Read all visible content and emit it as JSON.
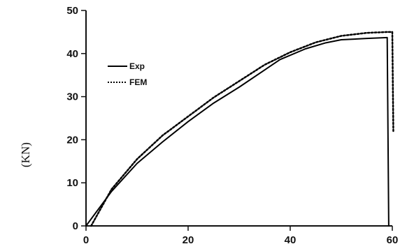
{
  "chart_data": {
    "type": "line",
    "title": "",
    "xlabel": "",
    "ylabel": "(KN)",
    "xlim": [
      0,
      60
    ],
    "ylim": [
      0,
      50
    ],
    "x_ticks": [
      0,
      20,
      40,
      60
    ],
    "x_tick_labels": [
      "0",
      "20",
      "40",
      "60"
    ],
    "y_ticks": [
      0,
      10,
      20,
      30,
      40,
      50
    ],
    "y_tick_labels": [
      "0",
      "10",
      "20",
      "30",
      "40",
      "50"
    ],
    "grid": false,
    "legend_position": "upper-left",
    "series": [
      {
        "name": "Exp",
        "style": "solid",
        "color": "#000000",
        "x": [
          0,
          5,
          10,
          15,
          20,
          25,
          30,
          35,
          38,
          43,
          47,
          50,
          55,
          59,
          59.3
        ],
        "y": [
          0,
          8,
          14.5,
          19.5,
          24.2,
          28.5,
          32.2,
          36.2,
          38.6,
          41.1,
          42.5,
          43.2,
          43.5,
          43.7,
          0
        ]
      },
      {
        "name": "FEM",
        "style": "dotted",
        "color": "#000000",
        "x": [
          1,
          5,
          10,
          15,
          20,
          25,
          30,
          35,
          40,
          45,
          50,
          55,
          59,
          60,
          60.2
        ],
        "y": [
          0,
          8.5,
          15.5,
          21,
          25.4,
          29.8,
          33.6,
          37.4,
          40.3,
          42.6,
          44.1,
          44.8,
          45,
          45,
          22
        ]
      }
    ]
  }
}
